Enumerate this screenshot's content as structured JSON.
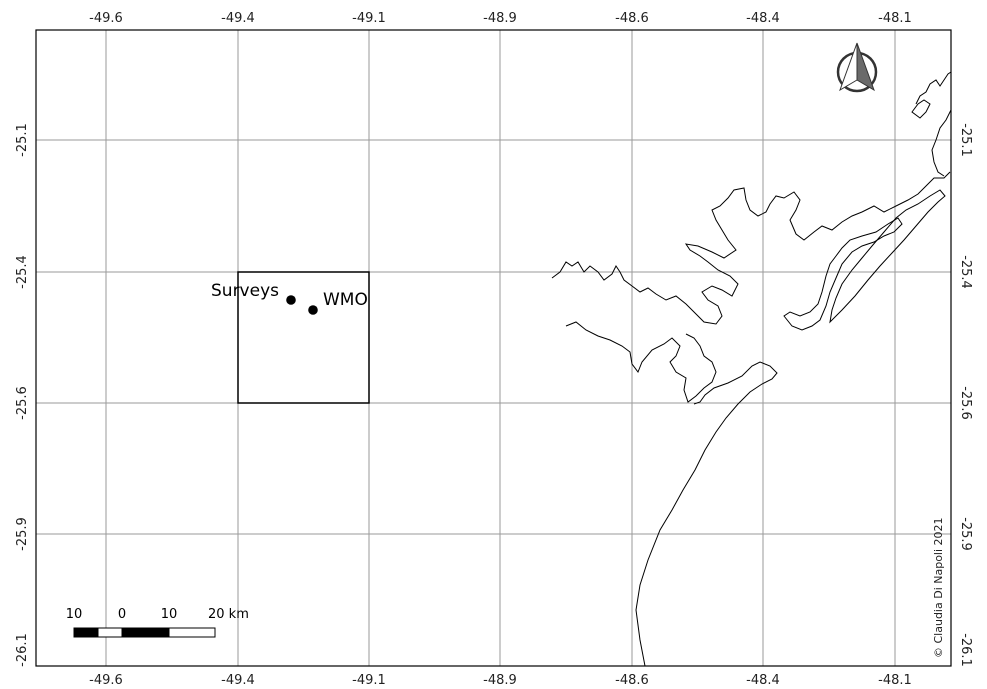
{
  "grid": {
    "lon_labels": [
      "-49.6",
      "-49.4",
      "-49.1",
      "-48.9",
      "-48.6",
      "-48.4",
      "-48.1"
    ],
    "lat_labels": [
      "-25.1",
      "-25.4",
      "-25.6",
      "-25.9",
      "-26.1"
    ]
  },
  "points": [
    {
      "name": "Surveys",
      "label": "Surveys"
    },
    {
      "name": "WMO",
      "label": "WMO"
    }
  ],
  "scale_bar": {
    "labels": [
      "10",
      "0",
      "10",
      "20 km"
    ]
  },
  "credit": "© Claudia Di Napoli 2021",
  "north_arrow": "north-arrow-icon",
  "colors": {
    "grid": "#9a9a9a",
    "frame": "#000000",
    "coast": "#000000"
  }
}
